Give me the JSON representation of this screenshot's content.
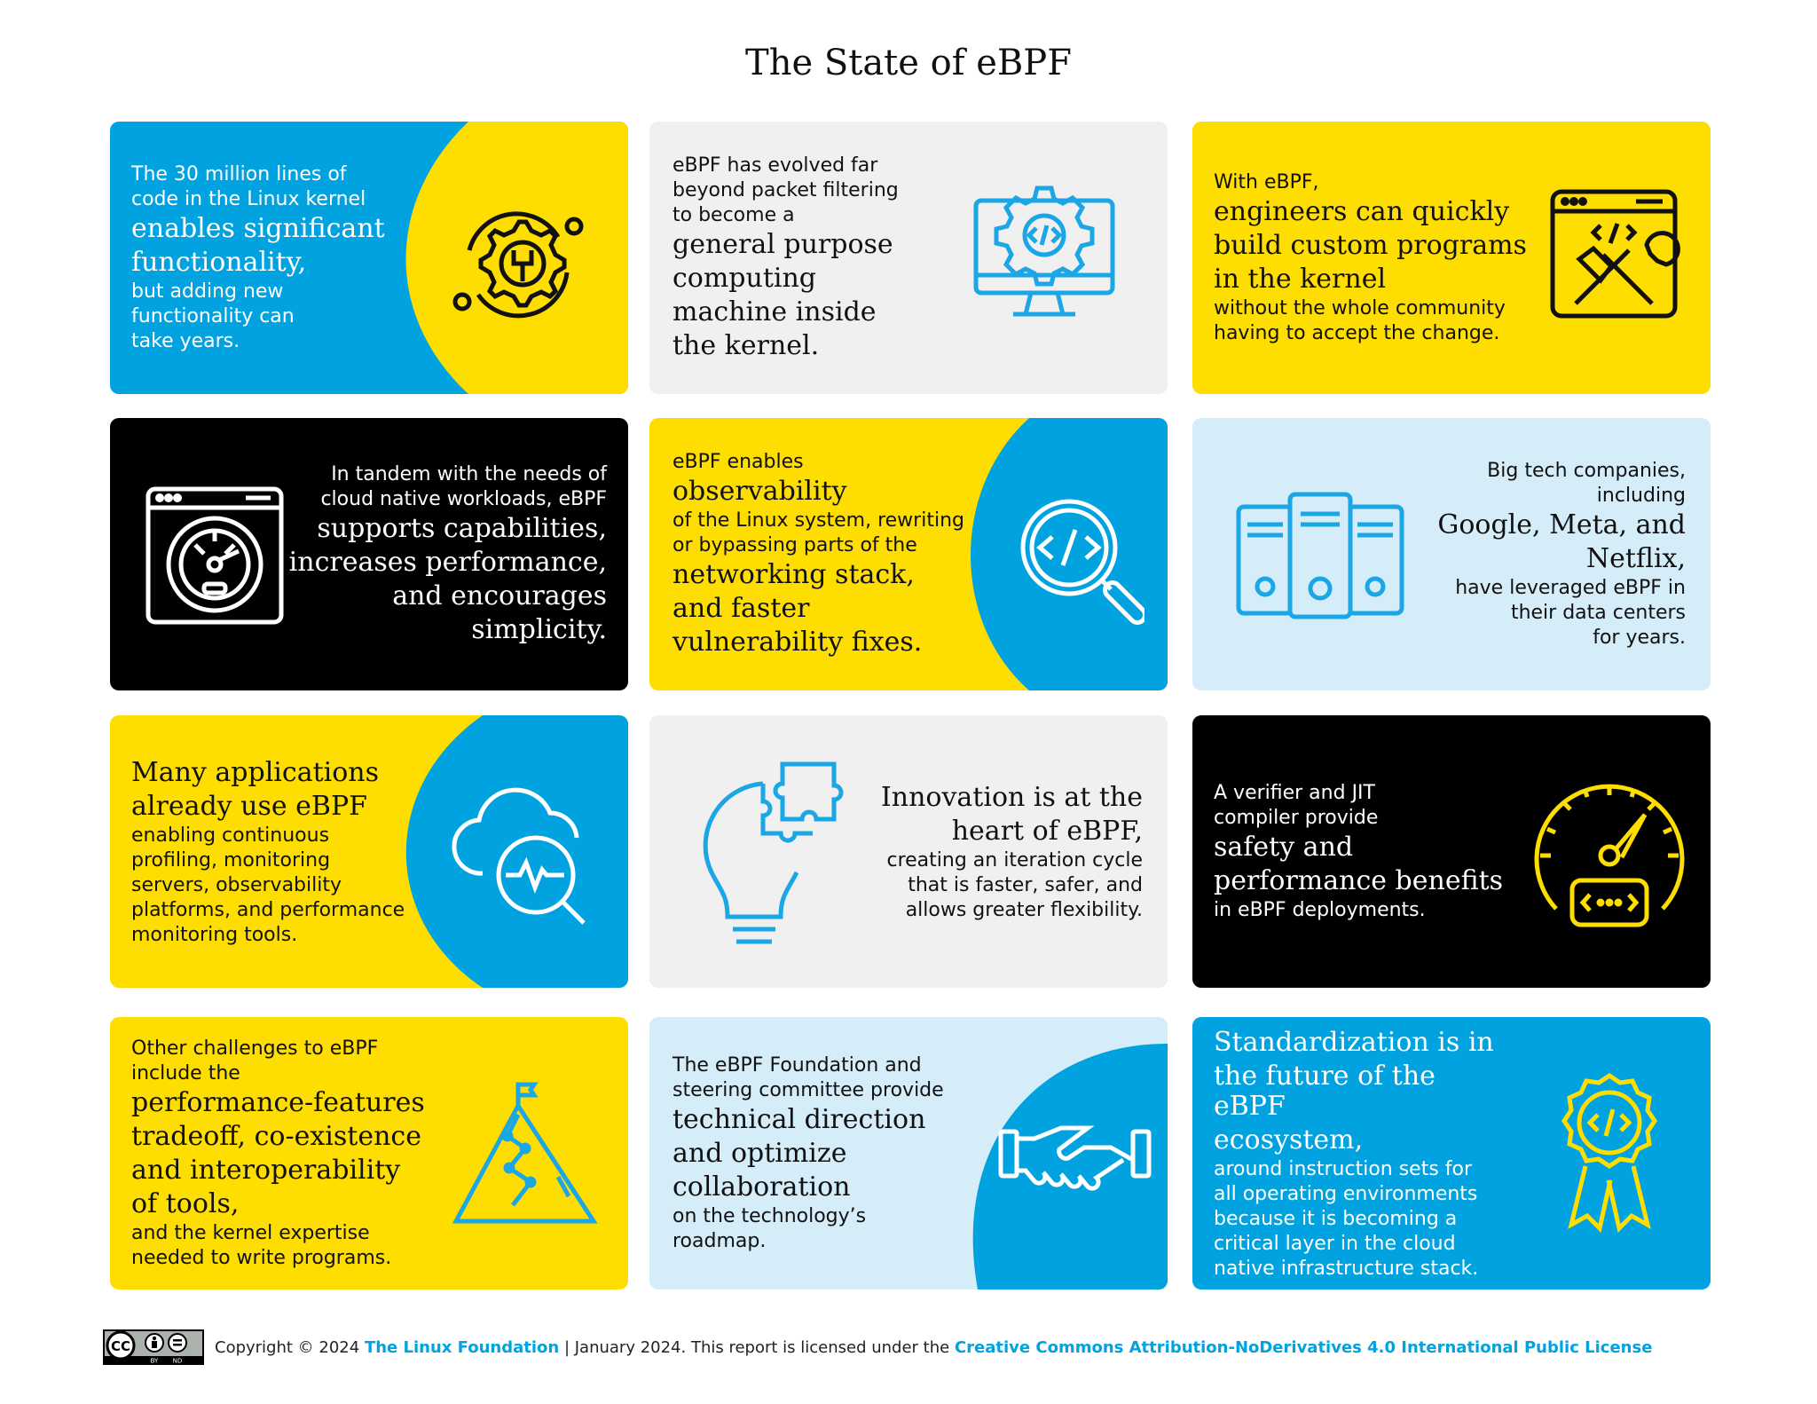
{
  "title": "The State of eBPF",
  "colors": {
    "blue": "#00a3e0",
    "yellow": "#fedd00",
    "black": "#000000",
    "gray": "#f0f0f0",
    "lightblue": "#d5ecf9"
  },
  "cards": [
    {
      "l1": "The 30 million lines of",
      "l2": "code in the Linux kernel",
      "b1": "enables significant",
      "b2": "functionality,",
      "l3": "but adding new",
      "l4": "functionality can",
      "l5": "take years.",
      "icon": "gear-wrench-icon"
    },
    {
      "l1": "eBPF has evolved far",
      "l2": "beyond packet filtering",
      "l3": "to become a",
      "b1": "general purpose",
      "b2": "computing",
      "b3": "machine inside",
      "b4": "the kernel.",
      "icon": "monitor-code-gear-icon"
    },
    {
      "l1": "With eBPF,",
      "b1": "engineers can quickly",
      "b2": "build custom programs",
      "b3": "in the kernel",
      "l2": "without the whole community",
      "l3": "having to accept the change.",
      "icon": "browser-tools-icon"
    },
    {
      "l1": "In tandem with the needs of",
      "l2": "cloud native workloads, eBPF",
      "b1": "supports capabilities,",
      "b2": "increases performance,",
      "b3": "and encourages",
      "b4": "simplicity.",
      "icon": "browser-gauge-icon"
    },
    {
      "l1": "eBPF enables",
      "b1": "observability",
      "l2": "of the Linux system, rewriting",
      "l3": "or bypassing parts of the",
      "b2": "networking stack,",
      "b3": "and faster",
      "b4": "vulnerability fixes.",
      "icon": "magnifier-code-icon"
    },
    {
      "l1": "Big tech companies,",
      "l2": "including",
      "b1": "Google, Meta, and",
      "b2": "Netflix,",
      "l3": "have leveraged eBPF in",
      "l4": "their data centers",
      "l5": "for years.",
      "icon": "servers-icon"
    },
    {
      "b1": "Many applications",
      "b2": "already use eBPF",
      "l1": "enabling continuous",
      "l2": "profiling, monitoring",
      "l3": "servers, observability",
      "l4": "platforms, and performance",
      "l5": "monitoring tools.",
      "icon": "cloud-monitoring-icon"
    },
    {
      "b1": "Innovation is at the",
      "b2": "heart of eBPF,",
      "l1": "creating an iteration cycle",
      "l2": "that is faster, safer, and",
      "l3": "allows greater flexibility.",
      "icon": "lightbulb-puzzle-icon"
    },
    {
      "l1": "A verifier and JIT",
      "l2": "compiler provide",
      "b1": "safety and",
      "b2": "performance benefits",
      "l3": "in eBPF deployments.",
      "icon": "speedometer-code-icon"
    },
    {
      "l1": "Other challenges to eBPF",
      "l2": "include the",
      "b1": "performance-features",
      "b2": "tradeoff, co-existence",
      "b3": "and interoperability",
      "b4": "of tools,",
      "l3": "and the kernel expertise",
      "l4": "needed to write programs.",
      "icon": "mountain-flag-icon"
    },
    {
      "l1": "The eBPF Foundation and",
      "l2": "steering committee provide",
      "b1": "technical direction",
      "b2": "and optimize",
      "b3": "collaboration",
      "l3": "on the technology’s",
      "l4": "roadmap.",
      "icon": "handshake-icon"
    },
    {
      "b1": "Standardization is in",
      "b2": "the future of the eBPF",
      "b3": "ecosystem,",
      "l1": "around instruction sets for",
      "l2": "all operating environments",
      "l3": "because it is becoming a",
      "l4": "critical layer in the cloud",
      "l5": "native infrastructure stack.",
      "icon": "award-ribbon-icon"
    }
  ],
  "footer": {
    "cc_badge": "cc-by-nd-badge",
    "cc_letters": "CC",
    "cc_by": "BY",
    "cc_nd": "ND",
    "copyright": "Copyright © 2024",
    "org": "The Linux Foundation",
    "sep": "| January 2024. This report is licensed under the",
    "license": "Creative Commons Attribution-NoDerivatives 4.0 International Public License"
  }
}
